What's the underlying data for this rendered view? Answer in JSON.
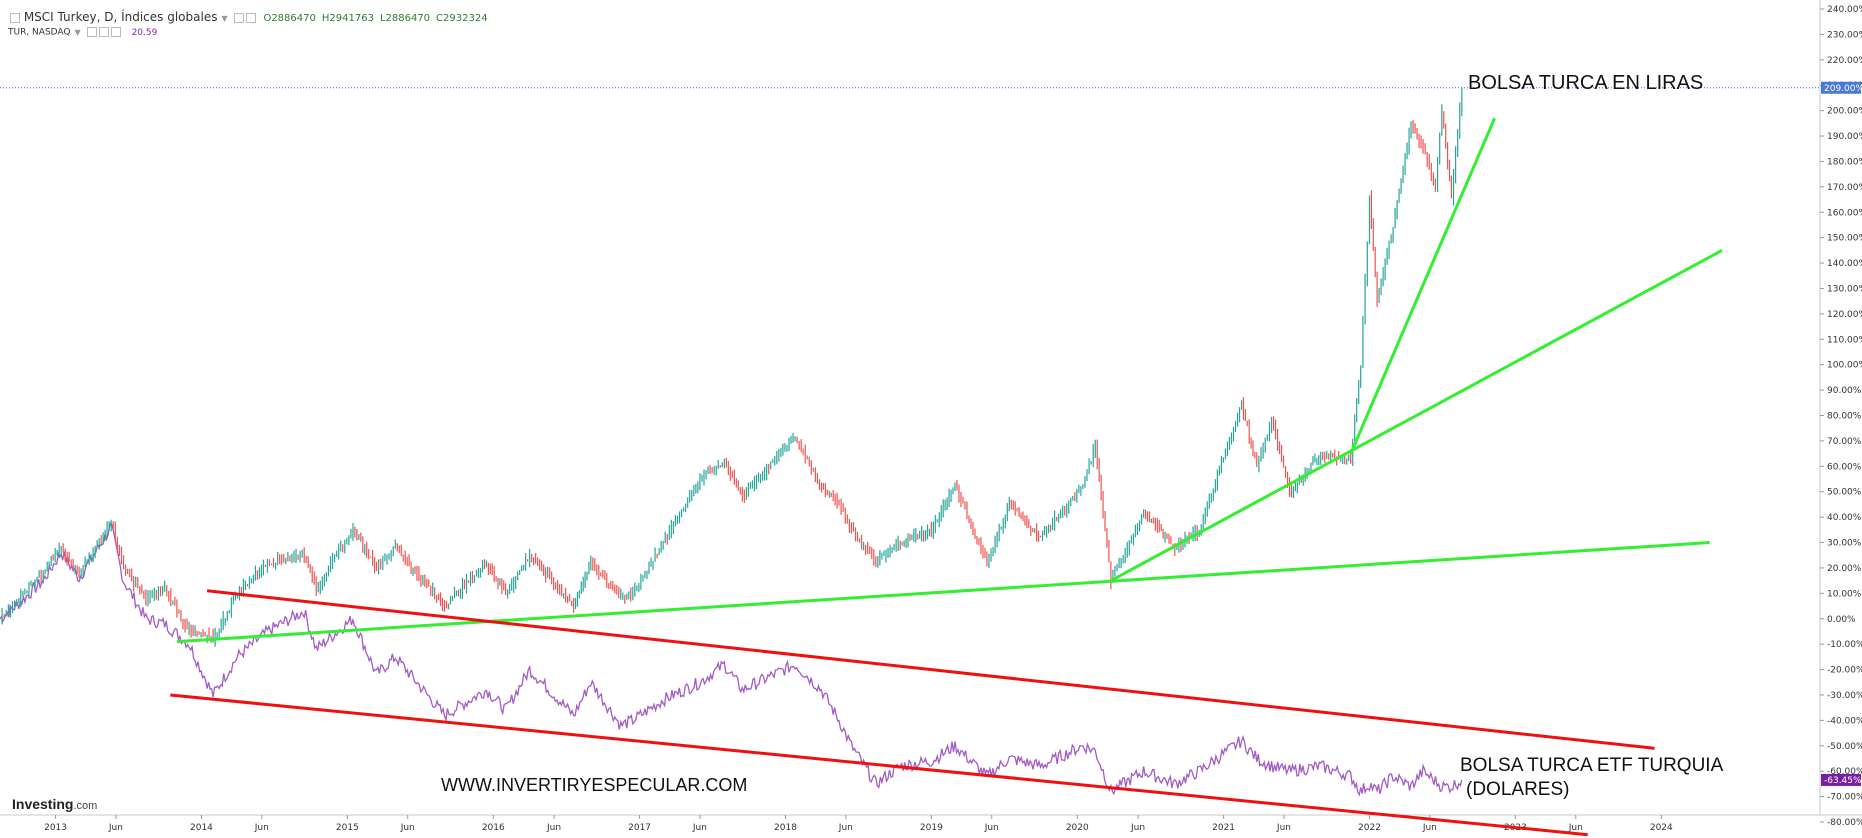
{
  "header": {
    "title": "MSCI Turkey, D, Índices globales",
    "ohlc": {
      "open": "O2886470",
      "high": "H2941763",
      "low": "L2886470",
      "close": "C2932324"
    },
    "compare_symbol": "TUR, NASDAQ",
    "compare_value": "20.59"
  },
  "annotations": {
    "top_label": "BOLSA TURCA EN LIRAS",
    "bottom_label_line1": "BOLSA TURCA ETF TURQUIA",
    "bottom_label_line2": "(DOLARES)",
    "watermark": "WWW.INVERTIRYESPECULAR.COM"
  },
  "logo": {
    "name": "Investing",
    "suffix": ".com"
  },
  "colors": {
    "index_up": "#26a69a",
    "index_down": "#ef5350",
    "etf_line": "#a25cc4",
    "trend_green": "#33ee33",
    "channel_red": "#ee1111",
    "last_price_tag": "#4a78d6",
    "etf_tag": "#7b1fa2"
  },
  "chart_data": {
    "type": "line",
    "y_unit": "%",
    "ylim": [
      -80,
      240
    ],
    "y_ticks": [
      240,
      230,
      220,
      210,
      200,
      190,
      180,
      170,
      160,
      150,
      140,
      130,
      120,
      110,
      100,
      90,
      80,
      70,
      60,
      50,
      40,
      30,
      20,
      10,
      0,
      -10,
      -20,
      -30,
      -40,
      -50,
      -60,
      -70,
      -80
    ],
    "y_tick_labels": [
      "240.00%",
      "230.00%",
      "220.00%",
      "210.00%",
      "200.00%",
      "190.00%",
      "180.00%",
      "170.00%",
      "160.00%",
      "150.00%",
      "140.00%",
      "130.00%",
      "120.00%",
      "110.00%",
      "100.00%",
      "90.00%",
      "80.00%",
      "70.00%",
      "60.00%",
      "50.00%",
      "40.00%",
      "30.00%",
      "20.00%",
      "10.00%",
      "0.00%",
      "-10.00%",
      "-20.00%",
      "-30.00%",
      "-40.00%",
      "-50.00%",
      "-60.00%",
      "-70.00%",
      "-80.00%"
    ],
    "xlim": [
      "2012-08-15",
      "2025-02-01"
    ],
    "x_ticks": [
      {
        "date": "2013-01-01",
        "label": "2013"
      },
      {
        "date": "2013-06-01",
        "label": "Jun"
      },
      {
        "date": "2014-01-01",
        "label": "2014"
      },
      {
        "date": "2014-06-01",
        "label": "Jun"
      },
      {
        "date": "2015-01-01",
        "label": "2015"
      },
      {
        "date": "2015-06-01",
        "label": "Jun"
      },
      {
        "date": "2016-01-01",
        "label": "2016"
      },
      {
        "date": "2016-06-01",
        "label": "Jun"
      },
      {
        "date": "2017-01-01",
        "label": "2017"
      },
      {
        "date": "2017-06-01",
        "label": "Jun"
      },
      {
        "date": "2018-01-01",
        "label": "2018"
      },
      {
        "date": "2018-06-01",
        "label": "Jun"
      },
      {
        "date": "2019-01-01",
        "label": "2019"
      },
      {
        "date": "2019-06-01",
        "label": "Jun"
      },
      {
        "date": "2020-01-01",
        "label": "2020"
      },
      {
        "date": "2020-06-01",
        "label": "Jun"
      },
      {
        "date": "2021-01-01",
        "label": "2021"
      },
      {
        "date": "2021-06-01",
        "label": "Jun"
      },
      {
        "date": "2022-01-01",
        "label": "2022"
      },
      {
        "date": "2022-06-01",
        "label": "Jun"
      },
      {
        "date": "2023-01-01",
        "label": "2023"
      },
      {
        "date": "2023-06-01",
        "label": "Jun"
      },
      {
        "date": "2024-01-01",
        "label": "2024"
      }
    ],
    "series": [
      {
        "name": "MSCI Turkey",
        "style": "candles",
        "points": [
          [
            "2012-08-15",
            0
          ],
          [
            "2012-10-01",
            8
          ],
          [
            "2012-12-01",
            18
          ],
          [
            "2013-01-15",
            28
          ],
          [
            "2013-03-01",
            18
          ],
          [
            "2013-05-20",
            38
          ],
          [
            "2013-06-20",
            20
          ],
          [
            "2013-08-15",
            8
          ],
          [
            "2013-10-01",
            12
          ],
          [
            "2013-12-01",
            -5
          ],
          [
            "2014-01-30",
            -8
          ],
          [
            "2014-04-01",
            10
          ],
          [
            "2014-06-15",
            22
          ],
          [
            "2014-09-15",
            25
          ],
          [
            "2014-10-15",
            12
          ],
          [
            "2015-01-15",
            35
          ],
          [
            "2015-03-15",
            20
          ],
          [
            "2015-05-01",
            28
          ],
          [
            "2015-09-01",
            5
          ],
          [
            "2015-12-15",
            22
          ],
          [
            "2016-02-01",
            10
          ],
          [
            "2016-04-01",
            25
          ],
          [
            "2016-07-20",
            5
          ],
          [
            "2016-09-01",
            22
          ],
          [
            "2016-11-15",
            8
          ],
          [
            "2016-12-15",
            10
          ],
          [
            "2017-03-01",
            30
          ],
          [
            "2017-06-01",
            55
          ],
          [
            "2017-08-01",
            62
          ],
          [
            "2017-09-15",
            48
          ],
          [
            "2018-01-25",
            72
          ],
          [
            "2018-04-01",
            52
          ],
          [
            "2018-05-15",
            45
          ],
          [
            "2018-06-15",
            35
          ],
          [
            "2018-08-15",
            22
          ],
          [
            "2018-10-15",
            30
          ],
          [
            "2019-01-01",
            35
          ],
          [
            "2019-03-01",
            52
          ],
          [
            "2019-05-20",
            22
          ],
          [
            "2019-07-15",
            45
          ],
          [
            "2019-10-01",
            32
          ],
          [
            "2020-01-15",
            52
          ],
          [
            "2020-02-15",
            68
          ],
          [
            "2020-03-25",
            15
          ],
          [
            "2020-06-15",
            42
          ],
          [
            "2020-09-01",
            28
          ],
          [
            "2020-11-01",
            35
          ],
          [
            "2021-02-15",
            84
          ],
          [
            "2021-03-25",
            60
          ],
          [
            "2021-05-01",
            78
          ],
          [
            "2021-06-15",
            50
          ],
          [
            "2021-09-01",
            65
          ],
          [
            "2021-11-15",
            62
          ],
          [
            "2021-12-10",
            100
          ],
          [
            "2022-01-01",
            165
          ],
          [
            "2022-01-20",
            125
          ],
          [
            "2022-03-01",
            155
          ],
          [
            "2022-04-15",
            195
          ],
          [
            "2022-05-15",
            185
          ],
          [
            "2022-06-15",
            170
          ],
          [
            "2022-07-01",
            200
          ],
          [
            "2022-07-25",
            165
          ],
          [
            "2022-08-20",
            209
          ]
        ]
      },
      {
        "name": "TUR, NASDAQ",
        "style": "line",
        "points": [
          [
            "2012-08-15",
            0
          ],
          [
            "2012-10-01",
            6
          ],
          [
            "2012-12-01",
            15
          ],
          [
            "2013-01-15",
            26
          ],
          [
            "2013-03-01",
            16
          ],
          [
            "2013-05-20",
            36
          ],
          [
            "2013-06-20",
            15
          ],
          [
            "2013-08-15",
            0
          ],
          [
            "2013-10-01",
            -2
          ],
          [
            "2013-12-01",
            -10
          ],
          [
            "2014-01-30",
            -30
          ],
          [
            "2014-04-01",
            -15
          ],
          [
            "2014-06-15",
            -5
          ],
          [
            "2014-09-15",
            3
          ],
          [
            "2014-10-15",
            -12
          ],
          [
            "2015-01-15",
            0
          ],
          [
            "2015-03-15",
            -22
          ],
          [
            "2015-05-01",
            -15
          ],
          [
            "2015-09-01",
            -38
          ],
          [
            "2015-12-15",
            -28
          ],
          [
            "2016-02-01",
            -36
          ],
          [
            "2016-04-01",
            -20
          ],
          [
            "2016-07-20",
            -38
          ],
          [
            "2016-09-01",
            -25
          ],
          [
            "2016-11-15",
            -42
          ],
          [
            "2016-12-15",
            -40
          ],
          [
            "2017-03-01",
            -32
          ],
          [
            "2017-06-01",
            -25
          ],
          [
            "2017-08-01",
            -18
          ],
          [
            "2017-09-15",
            -28
          ],
          [
            "2018-01-25",
            -18
          ],
          [
            "2018-04-01",
            -28
          ],
          [
            "2018-05-15",
            -40
          ],
          [
            "2018-06-15",
            -50
          ],
          [
            "2018-08-15",
            -65
          ],
          [
            "2018-10-15",
            -58
          ],
          [
            "2019-01-01",
            -56
          ],
          [
            "2019-03-01",
            -50
          ],
          [
            "2019-05-20",
            -62
          ],
          [
            "2019-07-15",
            -55
          ],
          [
            "2019-10-01",
            -58
          ],
          [
            "2020-01-15",
            -50
          ],
          [
            "2020-02-15",
            -52
          ],
          [
            "2020-03-25",
            -68
          ],
          [
            "2020-06-15",
            -60
          ],
          [
            "2020-09-01",
            -65
          ],
          [
            "2020-11-01",
            -60
          ],
          [
            "2021-02-15",
            -48
          ],
          [
            "2021-03-25",
            -55
          ],
          [
            "2021-05-01",
            -58
          ],
          [
            "2021-06-15",
            -60
          ],
          [
            "2021-09-01",
            -58
          ],
          [
            "2021-11-15",
            -62
          ],
          [
            "2021-12-10",
            -68
          ],
          [
            "2022-01-01",
            -65
          ],
          [
            "2022-01-20",
            -68
          ],
          [
            "2022-03-01",
            -62
          ],
          [
            "2022-04-15",
            -66
          ],
          [
            "2022-05-15",
            -60
          ],
          [
            "2022-06-15",
            -64
          ],
          [
            "2022-07-01",
            -66
          ],
          [
            "2022-07-25",
            -66
          ],
          [
            "2022-08-20",
            -63.45
          ]
        ]
      }
    ],
    "last_value_tags": [
      {
        "series": "MSCI Turkey",
        "value": 209,
        "label": "209.00%"
      },
      {
        "series": "TUR, NASDAQ",
        "value": -63.45,
        "label": "-63.45%"
      }
    ],
    "last_value_line": 209,
    "trend_lines": [
      {
        "color": "green",
        "from": [
          "2013-11-01",
          -9
        ],
        "to": [
          "2024-05-01",
          30
        ]
      },
      {
        "color": "green",
        "from": [
          "2020-03-25",
          15
        ],
        "to": [
          "2024-06-01",
          145
        ]
      },
      {
        "color": "green",
        "from": [
          "2021-11-15",
          65
        ],
        "to": [
          "2022-11-10",
          197
        ]
      },
      {
        "color": "red",
        "from": [
          "2014-01-15",
          11
        ],
        "to": [
          "2023-12-15",
          -51
        ]
      },
      {
        "color": "red",
        "from": [
          "2013-10-15",
          -30
        ],
        "to": [
          "2023-07-01",
          -85
        ]
      }
    ]
  }
}
